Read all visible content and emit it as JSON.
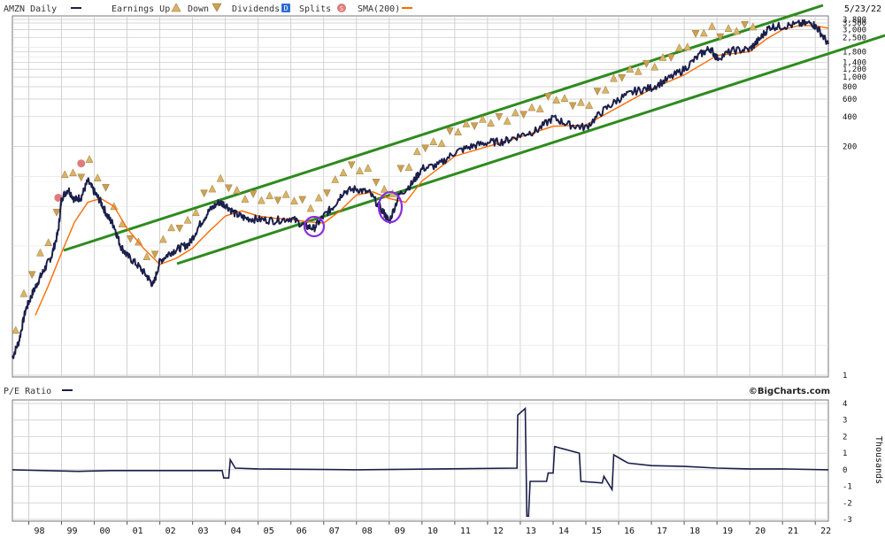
{
  "legend": {
    "ticker": "AMZN Daily",
    "earnings_up": "Earnings Up",
    "earnings_down": "Down",
    "dividends": "Dividends",
    "dividends_badge": "D",
    "splits": "Splits",
    "splits_badge": "S",
    "sma": "SMA(200)",
    "date": "5/23/22"
  },
  "pe_panel": {
    "label": "P/E Ratio",
    "brand": "©BigCharts.com",
    "axis_label": "Thousands"
  },
  "colors": {
    "price": "#1b1f4b",
    "sma": "#ff6a00",
    "channel": "#2e8b1e",
    "circle": "#8a2be2",
    "up_marker": "#d8b46a",
    "down_marker": "#c9a056",
    "split_marker": "#e07b7b",
    "dividend": "#2f6fd6",
    "grid": "#c8c8c8"
  },
  "chart_data": [
    {
      "type": "line",
      "scale": "log",
      "ylim": [
        1,
        3800
      ],
      "xlim": [
        1997.5,
        2022.4
      ],
      "yticks": [
        1,
        200,
        400,
        600,
        800,
        1000,
        1200,
        1400,
        1800,
        2500,
        3000,
        3500,
        3800
      ],
      "ytick_labels": [
        "1",
        "200",
        "400",
        "600",
        "800",
        "1,000",
        "1,200",
        "1,400",
        "1,800",
        "2,500",
        "3,000",
        "3,500",
        "3,800"
      ],
      "xticks": [
        1998,
        1999,
        2000,
        2001,
        2002,
        2003,
        2004,
        2005,
        2006,
        2007,
        2008,
        2009,
        2010,
        2011,
        2012,
        2013,
        2014,
        2015,
        2016,
        2017,
        2018,
        2019,
        2020,
        2021,
        2022
      ],
      "xtick_labels": [
        "98",
        "99",
        "00",
        "01",
        "02",
        "03",
        "04",
        "05",
        "06",
        "07",
        "08",
        "09",
        "10",
        "11",
        "12",
        "13",
        "14",
        "15",
        "16",
        "17",
        "18",
        "19",
        "20",
        "21",
        "22"
      ],
      "series": [
        {
          "name": "AMZN Daily",
          "x": [
            1997.5,
            1997.7,
            1997.9,
            1998.1,
            1998.3,
            1998.5,
            1998.7,
            1998.9,
            1999.0,
            1999.2,
            1999.4,
            1999.6,
            1999.8,
            2000.0,
            2000.2,
            2000.4,
            2000.6,
            2000.8,
            2001.0,
            2001.3,
            2001.6,
            2001.8,
            2002.0,
            2002.3,
            2002.6,
            2002.9,
            2003.2,
            2003.5,
            2003.8,
            2004.0,
            2004.3,
            2004.6,
            2005.0,
            2005.5,
            2006.0,
            2006.4,
            2006.7,
            2007.0,
            2007.3,
            2007.6,
            2008.0,
            2008.4,
            2008.8,
            2009.0,
            2009.3,
            2009.7,
            2010.0,
            2010.5,
            2011.0,
            2011.5,
            2012.0,
            2012.5,
            2013.0,
            2013.5,
            2014.0,
            2014.5,
            2015.0,
            2015.5,
            2016.0,
            2016.5,
            2017.0,
            2017.5,
            2018.0,
            2018.5,
            2018.8,
            2019.0,
            2019.5,
            2020.0,
            2020.3,
            2020.6,
            2021.0,
            2021.5,
            2021.9,
            2022.1,
            2022.4
          ],
          "values": [
            1.5,
            2.2,
            4.5,
            6.5,
            9.0,
            12.0,
            16.0,
            28.0,
            60.0,
            75.0,
            58.0,
            62.0,
            90.0,
            70.0,
            55.0,
            40.0,
            32.0,
            20.0,
            16.0,
            13.0,
            10.0,
            8.0,
            14.0,
            17.0,
            19.0,
            21.0,
            32.0,
            45.0,
            55.0,
            52.0,
            42.0,
            38.0,
            37.0,
            36.0,
            38.0,
            32.0,
            30.0,
            40.0,
            50.0,
            70.0,
            75.0,
            68.0,
            45.0,
            35.0,
            65.0,
            85.0,
            120.0,
            130.0,
            175.0,
            200.0,
            220.0,
            225.0,
            260.0,
            290.0,
            390.0,
            330.0,
            310.0,
            450.0,
            600.0,
            720.0,
            780.0,
            950.0,
            1200.0,
            1700.0,
            1950.0,
            1550.0,
            1850.0,
            1900.0,
            2400.0,
            3200.0,
            3250.0,
            3400.0,
            3500.0,
            3000.0,
            2150.0
          ]
        },
        {
          "name": "SMA(200)",
          "x": [
            1998.2,
            1998.6,
            1999.0,
            1999.4,
            1999.8,
            2000.2,
            2000.6,
            2001.0,
            2001.5,
            2002.0,
            2002.5,
            2003.0,
            2003.5,
            2004.0,
            2004.5,
            2005.0,
            2005.5,
            2006.0,
            2006.5,
            2007.0,
            2007.5,
            2008.0,
            2008.5,
            2009.0,
            2009.5,
            2010.0,
            2011.0,
            2012.0,
            2013.0,
            2014.0,
            2015.0,
            2016.0,
            2017.0,
            2018.0,
            2019.0,
            2020.0,
            2020.5,
            2021.0,
            2021.5,
            2022.0,
            2022.4
          ],
          "values": [
            4.0,
            8.0,
            17.0,
            35.0,
            55.0,
            60.0,
            50.0,
            30.0,
            19.0,
            13.0,
            15.0,
            19.0,
            28.0,
            40.0,
            45.0,
            40.0,
            38.0,
            37.0,
            35.0,
            34.0,
            45.0,
            65.0,
            70.0,
            60.0,
            55.0,
            90.0,
            160.0,
            200.0,
            250.0,
            320.0,
            330.0,
            500.0,
            760.0,
            1050.0,
            1650.0,
            1800.0,
            2400.0,
            3000.0,
            3300.0,
            3300.0,
            3100.0
          ]
        }
      ]
    },
    {
      "type": "line",
      "ylim": [
        -3,
        4
      ],
      "yticks": [
        -3,
        -2,
        -1,
        0,
        1,
        2,
        3,
        4
      ],
      "ytick_labels": [
        "-3",
        "-2",
        "-1",
        "0",
        "1",
        "2",
        "3",
        "4"
      ],
      "ylabel": "Thousands",
      "series": [
        {
          "name": "P/E Ratio",
          "x": [
            1997.5,
            1998.5,
            1999.5,
            2000.5,
            2001.5,
            2002.5,
            2003.9,
            2003.95,
            2004.1,
            2004.15,
            2004.3,
            2005.0,
            2008.0,
            2012.9,
            2012.92,
            2013.15,
            2013.2,
            2013.25,
            2013.3,
            2013.8,
            2013.85,
            2014.0,
            2014.05,
            2014.8,
            2014.85,
            2015.5,
            2015.55,
            2015.8,
            2015.85,
            2016.2,
            2016.3,
            2017.0,
            2018.0,
            2019.0,
            2020.0,
            2021.0,
            2022.4
          ],
          "values": [
            0.0,
            -0.05,
            -0.1,
            -0.05,
            -0.05,
            -0.05,
            -0.05,
            -0.5,
            -0.5,
            0.6,
            0.1,
            0.05,
            0.0,
            0.1,
            3.3,
            3.7,
            -2.8,
            -2.8,
            -0.7,
            -0.7,
            -0.2,
            -0.2,
            1.4,
            1.0,
            -0.7,
            -0.8,
            -0.4,
            -1.2,
            0.9,
            0.5,
            0.4,
            0.25,
            0.2,
            0.1,
            0.05,
            0.05,
            0.0
          ]
        }
      ]
    }
  ]
}
